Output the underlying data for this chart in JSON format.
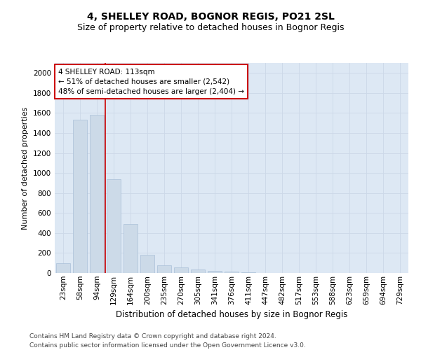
{
  "title1": "4, SHELLEY ROAD, BOGNOR REGIS, PO21 2SL",
  "title2": "Size of property relative to detached houses in Bognor Regis",
  "xlabel": "Distribution of detached houses by size in Bognor Regis",
  "ylabel": "Number of detached properties",
  "categories": [
    "23sqm",
    "58sqm",
    "94sqm",
    "129sqm",
    "164sqm",
    "200sqm",
    "235sqm",
    "270sqm",
    "305sqm",
    "341sqm",
    "376sqm",
    "411sqm",
    "447sqm",
    "482sqm",
    "517sqm",
    "553sqm",
    "588sqm",
    "623sqm",
    "659sqm",
    "694sqm",
    "729sqm"
  ],
  "values": [
    100,
    1530,
    1580,
    940,
    490,
    185,
    80,
    55,
    35,
    20,
    15,
    8,
    3,
    2,
    1,
    1,
    0,
    0,
    0,
    0,
    0
  ],
  "bar_color": "#ccdae8",
  "bar_edge_color": "#aac0d8",
  "vline_x": 2.5,
  "vline_color": "#cc0000",
  "annotation_text": "4 SHELLEY ROAD: 113sqm\n← 51% of detached houses are smaller (2,542)\n48% of semi-detached houses are larger (2,404) →",
  "annotation_box_facecolor": "#ffffff",
  "annotation_box_edgecolor": "#cc0000",
  "ylim": [
    0,
    2100
  ],
  "yticks": [
    0,
    200,
    400,
    600,
    800,
    1000,
    1200,
    1400,
    1600,
    1800,
    2000
  ],
  "grid_color": "#ccd8e8",
  "bg_color": "#dde8f4",
  "footer": "Contains HM Land Registry data © Crown copyright and database right 2024.\nContains public sector information licensed under the Open Government Licence v3.0.",
  "title1_fontsize": 10,
  "title2_fontsize": 9,
  "xlabel_fontsize": 8.5,
  "ylabel_fontsize": 8,
  "tick_fontsize": 7.5,
  "annotation_fontsize": 7.5,
  "footer_fontsize": 6.5
}
